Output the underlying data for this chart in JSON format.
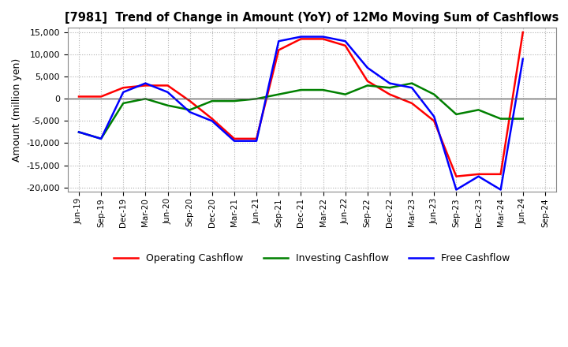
{
  "title": "[7981]  Trend of Change in Amount (YoY) of 12Mo Moving Sum of Cashflows",
  "ylabel": "Amount (million yen)",
  "ylim": [
    -21000,
    16000
  ],
  "yticks": [
    -20000,
    -15000,
    -10000,
    -5000,
    0,
    5000,
    10000,
    15000
  ],
  "background_color": "#ffffff",
  "grid_color": "#b0b0b0",
  "x_labels": [
    "Jun-19",
    "Sep-19",
    "Dec-19",
    "Mar-20",
    "Jun-20",
    "Sep-20",
    "Dec-20",
    "Mar-21",
    "Jun-21",
    "Sep-21",
    "Dec-21",
    "Mar-22",
    "Jun-22",
    "Sep-22",
    "Dec-22",
    "Mar-23",
    "Jun-23",
    "Sep-23",
    "Dec-23",
    "Mar-24",
    "Jun-24",
    "Sep-24"
  ],
  "operating_cashflow": [
    500,
    500,
    2500,
    3000,
    3000,
    -500,
    -4500,
    -9000,
    -9000,
    11000,
    13500,
    13500,
    12000,
    4000,
    1000,
    -1000,
    -5000,
    -17500,
    -17000,
    -17000,
    15000,
    null
  ],
  "investing_cashflow": [
    -7500,
    -9000,
    -1000,
    0,
    -1500,
    -2500,
    -500,
    -500,
    0,
    1000,
    2000,
    2000,
    1000,
    3000,
    2500,
    3500,
    1000,
    -3500,
    -2500,
    -4500,
    -4500,
    null
  ],
  "free_cashflow": [
    -7500,
    -9000,
    1500,
    3500,
    1500,
    -3000,
    -5000,
    -9500,
    -9500,
    13000,
    14000,
    14000,
    13000,
    7000,
    3500,
    2500,
    -4000,
    -20500,
    -17500,
    -20500,
    9000,
    null
  ],
  "colors": {
    "operating": "#ff0000",
    "investing": "#008000",
    "free": "#0000ff"
  },
  "legend_labels": [
    "Operating Cashflow",
    "Investing Cashflow",
    "Free Cashflow"
  ]
}
